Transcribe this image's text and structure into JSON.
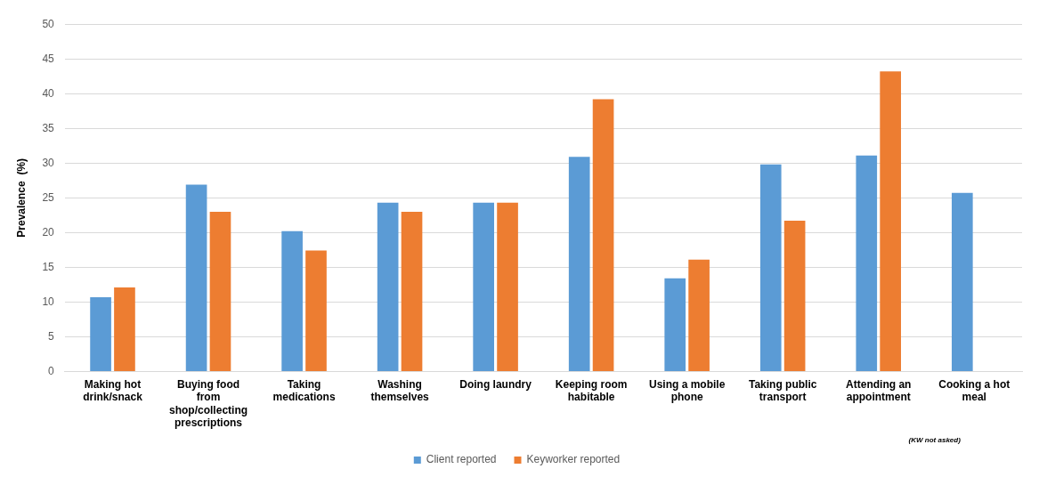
{
  "chart_data": {
    "type": "bar",
    "ylabel": "Prevalence  (%)",
    "categories": [
      "Making hot drink/snack",
      "Buying food from shop/collecting prescriptions",
      "Taking medications",
      "Washing themselves",
      "Doing laundry",
      "Keeping room habitable",
      "Using a mobile phone",
      "Taking public transport",
      "Attending an appointment",
      "Cooking a hot meal"
    ],
    "series": [
      {
        "name": "Client reported",
        "color": "#5b9bd5",
        "values": [
          10.7,
          26.9,
          20.2,
          24.3,
          24.3,
          30.9,
          13.4,
          29.8,
          31.1,
          25.7
        ]
      },
      {
        "name": "Keyworker reported",
        "color": "#ed7d31",
        "values": [
          12.1,
          23,
          17.4,
          23,
          24.3,
          39.2,
          16.1,
          21.7,
          43.2,
          null
        ]
      }
    ],
    "ylim": [
      0,
      50
    ],
    "yticks": [
      0,
      5,
      10,
      15,
      20,
      25,
      30,
      35,
      40,
      45,
      50
    ],
    "grid": "y",
    "legend": "bottom",
    "annotations": [
      "(KW not asked)"
    ]
  }
}
